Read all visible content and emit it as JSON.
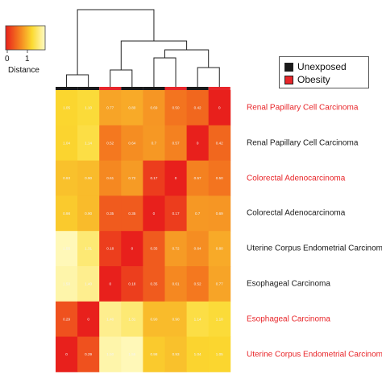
{
  "legend": {
    "items": [
      {
        "label": "Unexposed",
        "color": "#1a1a1a"
      },
      {
        "label": "Obesity",
        "color": "#e8262a"
      }
    ]
  },
  "color_scale": {
    "title": "Distance",
    "ticks": [
      "0",
      "1"
    ],
    "stops": [
      "#e8201c",
      "#f47a1f",
      "#fbd930",
      "#fffbc6"
    ]
  },
  "chart_data": {
    "type": "heatmap",
    "rows": [
      {
        "label": "Renal Papillary Cell Carcinoma",
        "group": "Obesity"
      },
      {
        "label": "Renal Papillary Cell Carcinoma",
        "group": "Unexposed"
      },
      {
        "label": "Colorectal Adenocarcinoma",
        "group": "Obesity"
      },
      {
        "label": "Colorectal Adenocarcinoma",
        "group": "Unexposed"
      },
      {
        "label": "Uterine Corpus Endometrial Carcinoma",
        "group": "Unexposed"
      },
      {
        "label": "Esophageal Carcinoma",
        "group": "Unexposed"
      },
      {
        "label": "Esophageal Carcinoma",
        "group": "Obesity"
      },
      {
        "label": "Uterine Corpus Endometrial Carcinoma",
        "group": "Obesity"
      }
    ],
    "label_colors": {
      "Obesity": "#e8262a",
      "Unexposed": "#1a1a1a"
    },
    "values": [
      [
        1.05,
        1.1,
        0.77,
        0.8,
        0.69,
        0.5,
        0.42,
        0.0
      ],
      [
        1.04,
        1.14,
        0.52,
        0.64,
        0.7,
        0.57,
        0.0,
        0.42
      ],
      [
        0.93,
        0.9,
        0.61,
        0.72,
        0.17,
        0.0,
        0.57,
        0.5
      ],
      [
        0.98,
        0.9,
        0.35,
        0.35,
        0.0,
        0.17,
        0.7,
        0.69
      ],
      [
        1.55,
        1.31,
        0.18,
        0.0,
        0.35,
        0.72,
        0.64,
        0.8
      ],
      [
        1.5,
        1.4,
        0.0,
        0.18,
        0.35,
        0.61,
        0.52,
        0.77
      ],
      [
        0.29,
        0.0,
        1.4,
        1.31,
        0.9,
        0.9,
        1.14,
        1.1
      ],
      [
        0.0,
        0.29,
        1.5,
        1.55,
        0.98,
        0.93,
        1.04,
        1.05
      ]
    ],
    "cell_labels": [
      [
        "1.05",
        "1.10",
        "0.77",
        "0.80",
        "0.69",
        "0.50",
        "0.42",
        "0"
      ],
      [
        "1.04",
        "1.14",
        "0.52",
        "0.64",
        "0.7",
        "0.57",
        "0",
        "0.42"
      ],
      [
        "0.93",
        "0.90",
        "0.61",
        "0.72",
        "0.17",
        "0",
        "0.57",
        "0.50"
      ],
      [
        "0.98",
        "0.90",
        "0.35",
        "0.35",
        "0",
        "0.17",
        "0.7",
        "0.69"
      ],
      [
        "1.55",
        "1.31",
        "0.18",
        "0",
        "0.35",
        "0.72",
        "0.64",
        "0.80"
      ],
      [
        "1.50",
        "1.40",
        "0",
        "0.18",
        "0.35",
        "0.61",
        "0.52",
        "0.77"
      ],
      [
        "0.29",
        "0",
        "1.40",
        "1.31",
        "0.90",
        "0.90",
        "1.14",
        "1.10"
      ],
      [
        "0",
        "0.29",
        "1.50",
        "1.55",
        "0.98",
        "0.93",
        "1.04",
        "1.05"
      ]
    ],
    "column_groups": [
      "Unexposed",
      "Unexposed",
      "Obesity",
      "Unexposed",
      "Unexposed",
      "Obesity",
      "Unexposed",
      "Obesity"
    ],
    "value_range": [
      0,
      1.6
    ]
  }
}
